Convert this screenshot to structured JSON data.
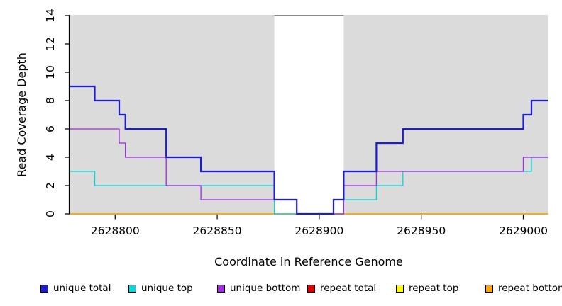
{
  "chart_data": {
    "type": "line",
    "variant": "step-coverage",
    "title": "",
    "xlabel": "Coordinate in Reference Genome",
    "ylabel": "Read Coverage Depth",
    "xlim": [
      2628778,
      2629012
    ],
    "ylim": [
      0,
      14
    ],
    "x_ticks": [
      2628800,
      2628850,
      2628900,
      2628950,
      2629000
    ],
    "y_ticks": [
      0,
      2,
      4,
      6,
      8,
      10,
      12,
      14
    ],
    "grid": "off",
    "plot_background": "#DBDBDB",
    "page_background": "#FFFFFF",
    "axis_color": "#000000",
    "highlight_band": {
      "x_start": 2628878,
      "x_end": 2628912,
      "fill": "#FFFFFF",
      "top_line_color": "#8C8C8C"
    },
    "series": [
      {
        "name": "repeat total",
        "color": "#E00000",
        "line_width": 1.2,
        "start_value": 0,
        "changes": []
      },
      {
        "name": "repeat top",
        "color": "#FFFF00",
        "line_width": 1.2,
        "start_value": 0,
        "changes": []
      },
      {
        "name": "repeat bottom",
        "color": "#FFA500",
        "line_width": 1.8,
        "start_value": 0,
        "changes": []
      },
      {
        "name": "unique top",
        "color": "#00D9D9",
        "line_width": 1.3,
        "start_value": 3,
        "changes": [
          [
            2628790,
            2
          ],
          [
            2628878,
            0
          ],
          [
            2628907,
            1
          ],
          [
            2628928,
            2
          ],
          [
            2628941,
            3
          ],
          [
            2629004,
            4
          ]
        ]
      },
      {
        "name": "unique bottom",
        "color": "#A02BE0",
        "line_width": 1.3,
        "start_value": 6,
        "changes": [
          [
            2628802,
            5
          ],
          [
            2628805,
            4
          ],
          [
            2628825,
            2
          ],
          [
            2628842,
            1
          ],
          [
            2628889,
            0
          ],
          [
            2628912,
            2
          ],
          [
            2628928,
            3
          ],
          [
            2629000,
            4
          ]
        ]
      },
      {
        "name": "unique total",
        "color": "#1C1CD6",
        "line_width": 2.2,
        "start_value": 9,
        "changes": [
          [
            2628790,
            8
          ],
          [
            2628802,
            7
          ],
          [
            2628805,
            6
          ],
          [
            2628825,
            4
          ],
          [
            2628842,
            3
          ],
          [
            2628878,
            1
          ],
          [
            2628889,
            0
          ],
          [
            2628907,
            1
          ],
          [
            2628912,
            3
          ],
          [
            2628928,
            5
          ],
          [
            2628941,
            6
          ],
          [
            2629000,
            7
          ],
          [
            2629004,
            8
          ]
        ]
      }
    ],
    "legend": {
      "position": "bottom",
      "entries": [
        {
          "label": "unique total",
          "color": "#1C1CD6"
        },
        {
          "label": "unique top",
          "color": "#00D9D9"
        },
        {
          "label": "unique bottom",
          "color": "#A02BE0"
        },
        {
          "label": "repeat total",
          "color": "#E00000"
        },
        {
          "label": "repeat top",
          "color": "#FFFF00"
        },
        {
          "label": "repeat bottom",
          "color": "#FFA500"
        }
      ]
    }
  }
}
